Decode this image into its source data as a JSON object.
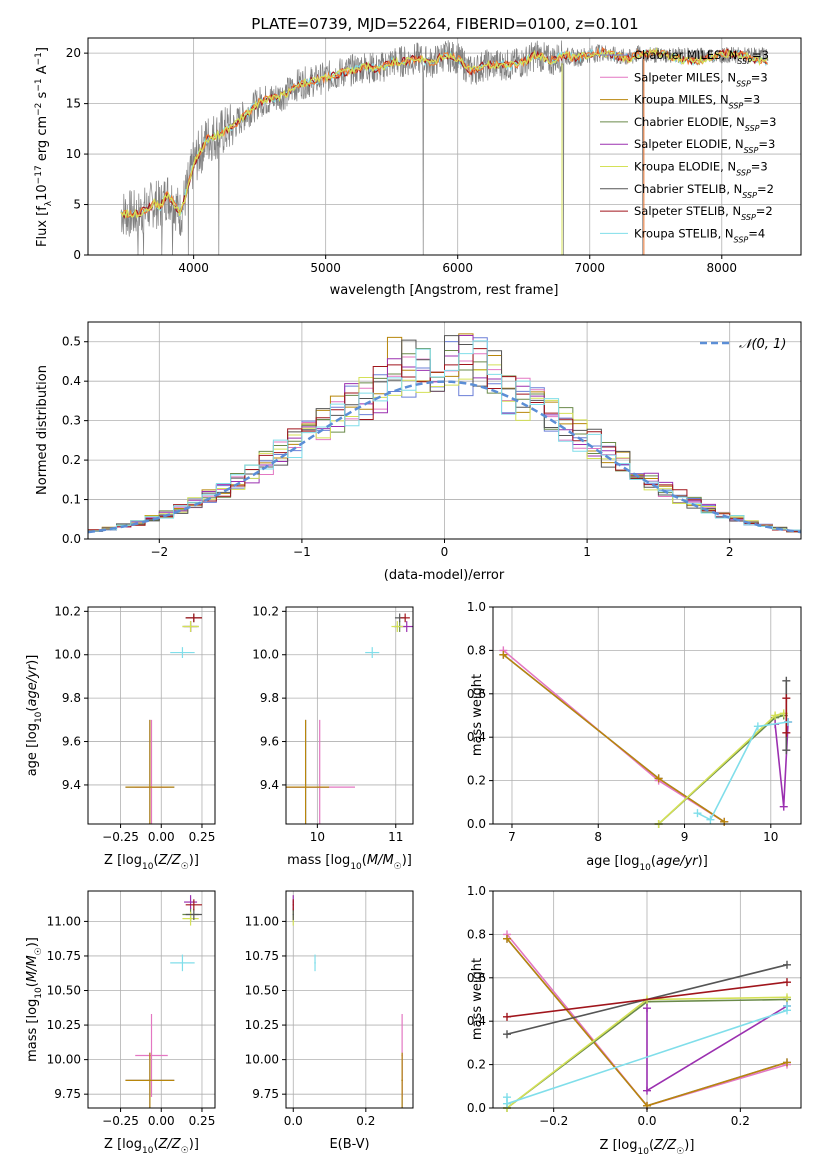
{
  "figure": {
    "title": "PLATE=0739, MJD=52264, FIBERID=0100, z=0.101"
  },
  "colors": {
    "Chabrier MILES": "#6b7fd7",
    "Salpeter MILES": "#e377c2",
    "Kroupa MILES": "#b8860b",
    "Chabrier ELODIE": "#6a8a4a",
    "Salpeter ELODIE": "#9b30b0",
    "Kroupa ELODIE": "#d4e157",
    "Chabrier STELIB": "#555555",
    "Salpeter STELIB": "#a0151c",
    "Kroupa STELIB": "#80deea",
    "orange": "#ee7733",
    "data": "#808080",
    "normal": "#5b8ed6"
  },
  "chart_data": [
    {
      "id": "spectrum",
      "type": "line",
      "xlabel": "wavelength [Angstrom, rest frame]",
      "ylabel": "Flux [f_λ 10^-17 erg cm^-2 s^-1 A^-1]",
      "xlim": [
        3200,
        8600
      ],
      "ylim": [
        0,
        21.5
      ],
      "xticks": [
        4000,
        5000,
        6000,
        7000,
        8000
      ],
      "yticks": [
        0,
        5,
        10,
        15,
        20
      ],
      "grid": true,
      "legend_position": "top-right",
      "legend": [
        {
          "name": "Chabrier MILES",
          "label": "Chabrier MILES, N_SSP=3"
        },
        {
          "name": "Salpeter MILES",
          "label": "Salpeter MILES, N_SSP=3"
        },
        {
          "name": "Kroupa MILES",
          "label": "Kroupa MILES, N_SSP=3"
        },
        {
          "name": "Chabrier ELODIE",
          "label": "Chabrier ELODIE, N_SSP=3"
        },
        {
          "name": "Salpeter ELODIE",
          "label": "Salpeter ELODIE, N_SSP=3"
        },
        {
          "name": "Kroupa ELODIE",
          "label": "Kroupa ELODIE, N_SSP=3"
        },
        {
          "name": "Chabrier STELIB",
          "label": "Chabrier STELIB, N_SSP=2"
        },
        {
          "name": "Salpeter STELIB",
          "label": "Salpeter STELIB, N_SSP=2"
        },
        {
          "name": "Kroupa STELIB",
          "label": "Kroupa STELIB, N_SSP=4"
        }
      ],
      "model_continuum": {
        "x": [
          3450,
          3550,
          3650,
          3700,
          3750,
          3800,
          3850,
          3900,
          3950,
          4000,
          4100,
          4200,
          4300,
          4400,
          4500,
          4600,
          4700,
          4800,
          4900,
          5000,
          5100,
          5200,
          5300,
          5400,
          5500,
          5600,
          5700,
          5800,
          5900,
          6000,
          6100,
          6200,
          6300,
          6400,
          6500,
          6600,
          6700,
          6800,
          6900,
          7000,
          7100,
          7200,
          7300,
          7400
        ],
        "y": [
          4.2,
          4.0,
          4.5,
          5.2,
          4.8,
          6.0,
          5.2,
          4.0,
          6.5,
          9.0,
          11.5,
          12.0,
          12.8,
          14.0,
          15.2,
          15.5,
          16.0,
          17.0,
          17.2,
          17.6,
          18.0,
          18.3,
          18.7,
          18.4,
          19.1,
          19.2,
          19.5,
          19.0,
          19.8,
          19.5,
          18.2,
          18.8,
          18.9,
          18.8,
          19.1,
          19.9,
          19.2,
          19.8,
          19.5,
          19.9,
          20.1,
          19.7,
          19.5,
          20.1
        ]
      },
      "data_drop_wavelengths": [
        3580,
        3620,
        3760,
        3840,
        3960,
        4190,
        5740,
        6800,
        7400
      ]
    },
    {
      "id": "residuals",
      "type": "area",
      "xlabel": "(data-model)/error",
      "ylabel": "Normed distribution",
      "xlim": [
        -2.5,
        2.5
      ],
      "ylim": [
        0,
        0.55
      ],
      "xticks": [
        -2,
        -1,
        0,
        1,
        2
      ],
      "yticks": [
        0.0,
        0.1,
        0.2,
        0.3,
        0.4,
        0.5
      ],
      "grid": true,
      "legend_position": "top-right",
      "legend_label": "𝒩(0, 1)",
      "bin_edges_start": -2.5,
      "bin_width": 0.1
    },
    {
      "id": "age_vs_Z",
      "type": "scatter",
      "xlabel": "Z [log10(Z/Z☉)]",
      "ylabel": "age  [log10(age/yr)]",
      "xlim": [
        -0.45,
        0.33
      ],
      "ylim": [
        9.22,
        10.22
      ],
      "xticks": [
        -0.25,
        0.0,
        0.25
      ],
      "xtick_labels": [
        "−0.25",
        "0.00",
        "0.25"
      ],
      "yticks": [
        9.4,
        9.6,
        9.8,
        10.0,
        10.2
      ],
      "grid": true
    },
    {
      "id": "age_vs_mass",
      "type": "scatter",
      "xlabel": "mass [log10(M/M☉)]",
      "xlim": [
        9.6,
        11.22
      ],
      "ylim": [
        9.22,
        10.22
      ],
      "xticks": [
        10,
        11
      ],
      "yticks": [
        9.4,
        9.6,
        9.8,
        10.0,
        10.2
      ],
      "grid": true
    },
    {
      "id": "weight_vs_age",
      "type": "line",
      "xlabel": "age  [log10(age/yr)]",
      "ylabel": "mass weight",
      "xlim": [
        6.78,
        10.35
      ],
      "ylim": [
        0.0,
        1.0
      ],
      "xticks": [
        7,
        8,
        9,
        10
      ],
      "yticks": [
        0.0,
        0.2,
        0.4,
        0.6,
        0.8,
        1.0
      ],
      "grid": true
    },
    {
      "id": "mass_vs_Z",
      "type": "scatter",
      "xlabel": "Z [log10(Z/Z☉)]",
      "ylabel": "mass [log10(M/M☉)]",
      "xlim": [
        -0.45,
        0.33
      ],
      "ylim": [
        9.65,
        11.22
      ],
      "xticks": [
        -0.25,
        0.0,
        0.25
      ],
      "xtick_labels": [
        "−0.25",
        "0.00",
        "0.25"
      ],
      "yticks": [
        9.75,
        10.0,
        10.25,
        10.5,
        10.75,
        11.0
      ],
      "ytick_labels": [
        "9.75",
        "10.00",
        "10.25",
        "10.50",
        "10.75",
        "11.00"
      ],
      "grid": true
    },
    {
      "id": "mass_vs_EBV",
      "type": "scatter",
      "xlabel": "E(B-V)",
      "xlim": [
        -0.02,
        0.33
      ],
      "ylim": [
        9.65,
        11.22
      ],
      "xticks": [
        0.0,
        0.2
      ],
      "xtick_labels": [
        "0.0",
        "0.2"
      ],
      "yticks": [
        9.75,
        10.0,
        10.25,
        10.5,
        10.75,
        11.0
      ],
      "ytick_labels": [
        "9.75",
        "10.00",
        "10.25",
        "10.50",
        "10.75",
        "11.00"
      ],
      "grid": true
    },
    {
      "id": "weight_vs_Z",
      "type": "line",
      "xlabel": "Z [log10(Z/Z☉)]",
      "ylabel": "mass weight",
      "xlim": [
        -0.33,
        0.33
      ],
      "ylim": [
        0.0,
        1.0
      ],
      "xticks": [
        -0.2,
        0.0,
        0.2
      ],
      "xtick_labels": [
        "−0.2",
        "0.0",
        "0.2"
      ],
      "yticks": [
        0.0,
        0.2,
        0.4,
        0.6,
        0.8,
        1.0
      ],
      "grid": true
    }
  ],
  "fits": [
    {
      "name": "Chabrier MILES",
      "Z": -0.07,
      "Zerr": 0.3,
      "age": 9.39,
      "ageErr": 0.62,
      "mass": 9.85,
      "massErr": 0.2,
      "ebv": 0.3,
      "ssp": [
        {
          "age": 6.9,
          "Z": -0.3,
          "w": 0.78
        },
        {
          "age": 8.7,
          "Z": 0.3,
          "w": 0.21
        },
        {
          "age": 9.46,
          "Z": 0.0,
          "w": 0.01
        }
      ]
    },
    {
      "name": "Salpeter MILES",
      "Z": -0.06,
      "Zerr": 0.2,
      "age": 9.39,
      "ageErr": 0.62,
      "mass": 10.03,
      "massErr": 0.3,
      "ebv": 0.3,
      "ssp": [
        {
          "age": 6.9,
          "Z": -0.3,
          "w": 0.8
        },
        {
          "age": 8.7,
          "Z": 0.3,
          "w": 0.2
        },
        {
          "age": 9.46,
          "Z": 0.0,
          "w": 0.01
        }
      ]
    },
    {
      "name": "Kroupa MILES",
      "Z": -0.07,
      "Zerr": 0.3,
      "age": 9.39,
      "ageErr": 0.62,
      "mass": 9.85,
      "massErr": 0.2,
      "ebv": 0.3,
      "ssp": [
        {
          "age": 6.9,
          "Z": -0.3,
          "w": 0.78
        },
        {
          "age": 8.7,
          "Z": 0.3,
          "w": 0.21
        },
        {
          "age": 9.46,
          "Z": 0.0,
          "w": 0.01
        }
      ]
    },
    {
      "name": "Chabrier ELODIE",
      "Z": 0.18,
      "Zerr": 0.1,
      "age": 10.13,
      "ageErr": 0.05,
      "mass": 11.05,
      "massErr": 0.05,
      "ebv": 0.0,
      "ssp": [
        {
          "age": 8.7,
          "Z": -0.3,
          "w": 0.0
        },
        {
          "age": 10.05,
          "Z": 0.0,
          "w": 0.49
        },
        {
          "age": 10.15,
          "Z": 0.3,
          "w": 0.5
        }
      ]
    },
    {
      "name": "Salpeter ELODIE",
      "Z": 0.18,
      "Zerr": 0.08,
      "age": 10.13,
      "ageErr": 0.05,
      "mass": 11.14,
      "massErr": 0.05,
      "ebv": 0.0,
      "ssp": [
        {
          "age": 10.05,
          "Z": 0.0,
          "w": 0.46
        },
        {
          "age": 10.15,
          "Z": 0.0,
          "w": 0.08
        },
        {
          "age": 10.2,
          "Z": 0.3,
          "w": 0.47
        }
      ]
    },
    {
      "name": "Kroupa ELODIE",
      "Z": 0.18,
      "Zerr": 0.1,
      "age": 10.13,
      "ageErr": 0.05,
      "mass": 11.02,
      "massErr": 0.05,
      "ebv": 0.0,
      "ssp": [
        {
          "age": 8.7,
          "Z": -0.3,
          "w": 0.0
        },
        {
          "age": 10.05,
          "Z": 0.0,
          "w": 0.5
        },
        {
          "age": 10.15,
          "Z": 0.3,
          "w": 0.51
        }
      ]
    },
    {
      "name": "Chabrier STELIB",
      "Z": 0.2,
      "Zerr": 0.1,
      "age": 10.17,
      "ageErr": 0.04,
      "mass": 11.05,
      "massErr": 0.04,
      "ebv": 0.0,
      "ssp": [
        {
          "age": 10.18,
          "Z": -0.3,
          "w": 0.34
        },
        {
          "age": 10.18,
          "Z": 0.3,
          "w": 0.66
        }
      ]
    },
    {
      "name": "Salpeter STELIB",
      "Z": 0.2,
      "Zerr": 0.1,
      "age": 10.17,
      "ageErr": 0.04,
      "mass": 11.12,
      "massErr": 0.04,
      "ebv": 0.0,
      "ssp": [
        {
          "age": 10.18,
          "Z": -0.3,
          "w": 0.42
        },
        {
          "age": 10.18,
          "Z": 0.3,
          "w": 0.58
        }
      ]
    },
    {
      "name": "Kroupa STELIB",
      "Z": 0.13,
      "Zerr": 0.15,
      "age": 10.01,
      "ageErr": 0.05,
      "mass": 10.7,
      "massErr": 0.06,
      "ebv": 0.06,
      "ssp": [
        {
          "age": 9.15,
          "Z": -0.3,
          "w": 0.05
        },
        {
          "age": 9.3,
          "Z": -0.3,
          "w": 0.02
        },
        {
          "age": 9.85,
          "Z": 0.3,
          "w": 0.45
        },
        {
          "age": 10.2,
          "Z": 0.3,
          "w": 0.47
        }
      ]
    }
  ]
}
